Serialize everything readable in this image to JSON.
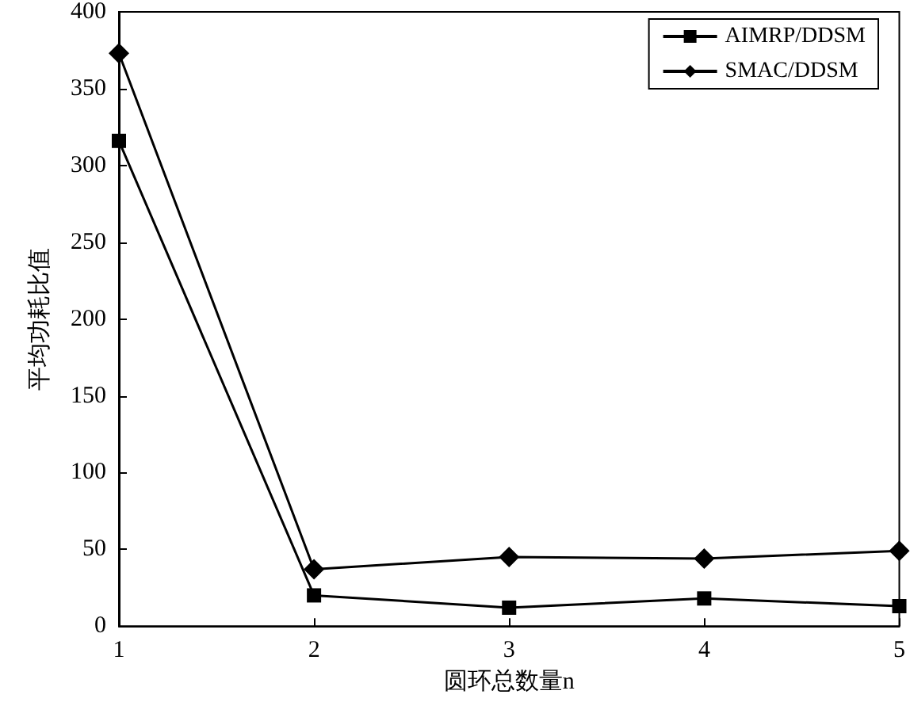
{
  "chart_data": {
    "type": "line",
    "xlabel": "圆环总数量n",
    "ylabel": "平均功耗比值",
    "x": [
      1,
      2,
      3,
      4,
      5
    ],
    "xlim": [
      1,
      5
    ],
    "xticks": [
      1,
      2,
      3,
      4,
      5
    ],
    "ylim": [
      0,
      400
    ],
    "yticks": [
      0,
      50,
      100,
      150,
      200,
      250,
      300,
      350,
      400
    ],
    "series": [
      {
        "name": "AIMRP/DDSM",
        "color": "#000000",
        "marker": "square",
        "values": [
          316,
          20,
          12,
          18,
          13
        ]
      },
      {
        "name": "SMAC/DDSM",
        "color": "#000000",
        "marker": "diamond",
        "values": [
          373,
          37,
          45,
          44,
          49
        ]
      }
    ],
    "grid": false,
    "legend": "top right",
    "line_style": "solid"
  }
}
